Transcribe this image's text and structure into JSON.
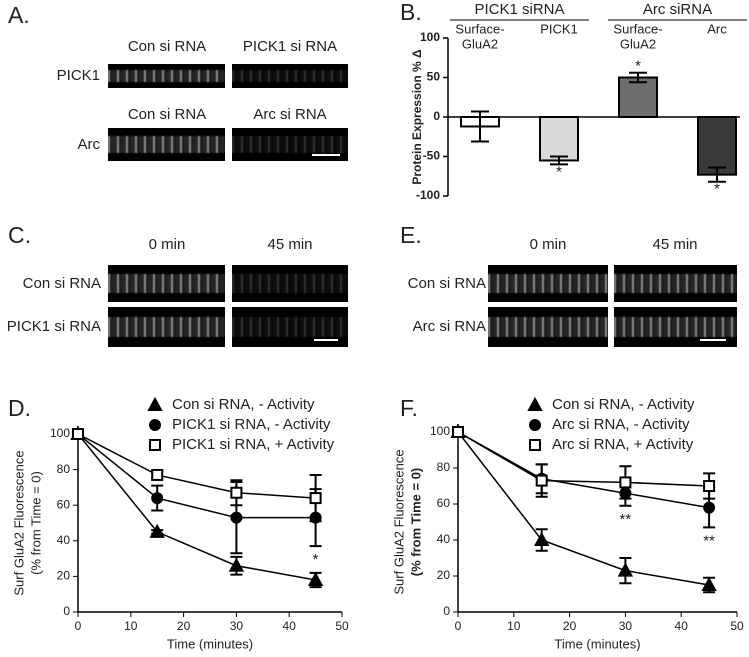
{
  "image_panels": [
    {
      "label": "A.",
      "rows": [
        {
          "name": "PICK1",
          "titles": [
            "Con si RNA",
            "PICK1 si RNA"
          ]
        },
        {
          "name": "Arc",
          "titles": [
            "Con si RNA",
            "Arc si RNA"
          ]
        }
      ]
    },
    {
      "label": "C.",
      "columns": [
        "0 min",
        "45 min"
      ],
      "rows": [
        "Con si RNA",
        "PICK1 si RNA"
      ]
    },
    {
      "label": "E.",
      "columns": [
        "0 min",
        "45 min"
      ],
      "rows": [
        "Con si RNA",
        "Arc si RNA"
      ]
    }
  ],
  "chart_data": [
    {
      "type": "bar",
      "panel_label": "B.",
      "ylabel": "Protein Expression % Δ",
      "group_labels": [
        "PICK1 siRNA",
        "Arc siRNA"
      ],
      "categories": [
        [
          "Surface-",
          "GluA2"
        ],
        [
          "PICK1"
        ],
        [
          "Surface-",
          "GluA2"
        ],
        [
          "Arc"
        ]
      ],
      "values": [
        -12,
        -55,
        50,
        -73
      ],
      "errors": [
        19,
        5,
        6,
        9
      ],
      "significance": [
        null,
        "*",
        "*",
        "*"
      ],
      "colors": [
        "#ffffff",
        "#d9d9d9",
        "#6e6e6e",
        "#3a3a3a"
      ],
      "ylim": [
        -100,
        100
      ],
      "yticks": [
        -100,
        -50,
        0,
        50,
        100
      ]
    },
    {
      "type": "line",
      "panel_label": "D.",
      "xlabel": "Time (minutes)",
      "ylabel": [
        "Surf GluA2 Fluorescence",
        "(% from Time = 0)"
      ],
      "x": [
        0,
        15,
        30,
        45
      ],
      "xlim": [
        0,
        50
      ],
      "xticks": [
        0,
        10,
        20,
        30,
        40,
        50
      ],
      "ylim": [
        0,
        100
      ],
      "yticks": [
        0,
        20,
        40,
        60,
        80,
        100
      ],
      "series": [
        {
          "name": "Con si RNA, - Activity",
          "color": "#000000",
          "marker": "triangle",
          "filled": true,
          "values": [
            100,
            45,
            26,
            18
          ],
          "errors": [
            0,
            1,
            5,
            4
          ],
          "significance": [
            null,
            null,
            null,
            null
          ]
        },
        {
          "name": "PICK1 si RNA, - Activity",
          "color": "#000000",
          "marker": "circle",
          "filled": true,
          "values": [
            100,
            64,
            53,
            53
          ],
          "errors": [
            0,
            7,
            20,
            16
          ],
          "significance": [
            null,
            null,
            null,
            "*"
          ]
        },
        {
          "name": "PICK1 si RNA, + Activity",
          "color": "#000000",
          "marker": "square",
          "filled": false,
          "values": [
            100,
            77,
            67,
            64
          ],
          "errors": [
            0,
            2,
            7,
            13
          ],
          "significance": [
            null,
            null,
            null,
            null
          ]
        }
      ]
    },
    {
      "type": "line",
      "panel_label": "F.",
      "xlabel": "Time (minutes)",
      "ylabel": [
        "Surf GluA2 Fluorescence",
        "(% from Time = 0)"
      ],
      "x": [
        0,
        15,
        30,
        45
      ],
      "xlim": [
        0,
        50
      ],
      "xticks": [
        0,
        10,
        20,
        30,
        40,
        50
      ],
      "ylim": [
        0,
        100
      ],
      "yticks": [
        0,
        20,
        40,
        60,
        80,
        100
      ],
      "series": [
        {
          "name": "Con si RNA, - Activity",
          "color": "#000000",
          "marker": "triangle",
          "filled": true,
          "values": [
            100,
            40,
            23,
            15
          ],
          "errors": [
            0,
            6,
            7,
            4
          ],
          "significance": [
            null,
            null,
            null,
            null
          ]
        },
        {
          "name": "Arc si RNA, - Activity",
          "color": "#000000",
          "marker": "circle",
          "filled": true,
          "values": [
            100,
            74,
            66,
            58
          ],
          "errors": [
            0,
            8,
            7,
            11
          ],
          "significance": [
            null,
            null,
            "**",
            "**"
          ]
        },
        {
          "name": "Arc si RNA, + Activity",
          "color": "#000000",
          "marker": "square",
          "filled": false,
          "values": [
            100,
            73,
            72,
            70
          ],
          "errors": [
            0,
            9,
            9,
            7
          ],
          "significance": [
            null,
            null,
            null,
            null
          ]
        }
      ]
    }
  ]
}
